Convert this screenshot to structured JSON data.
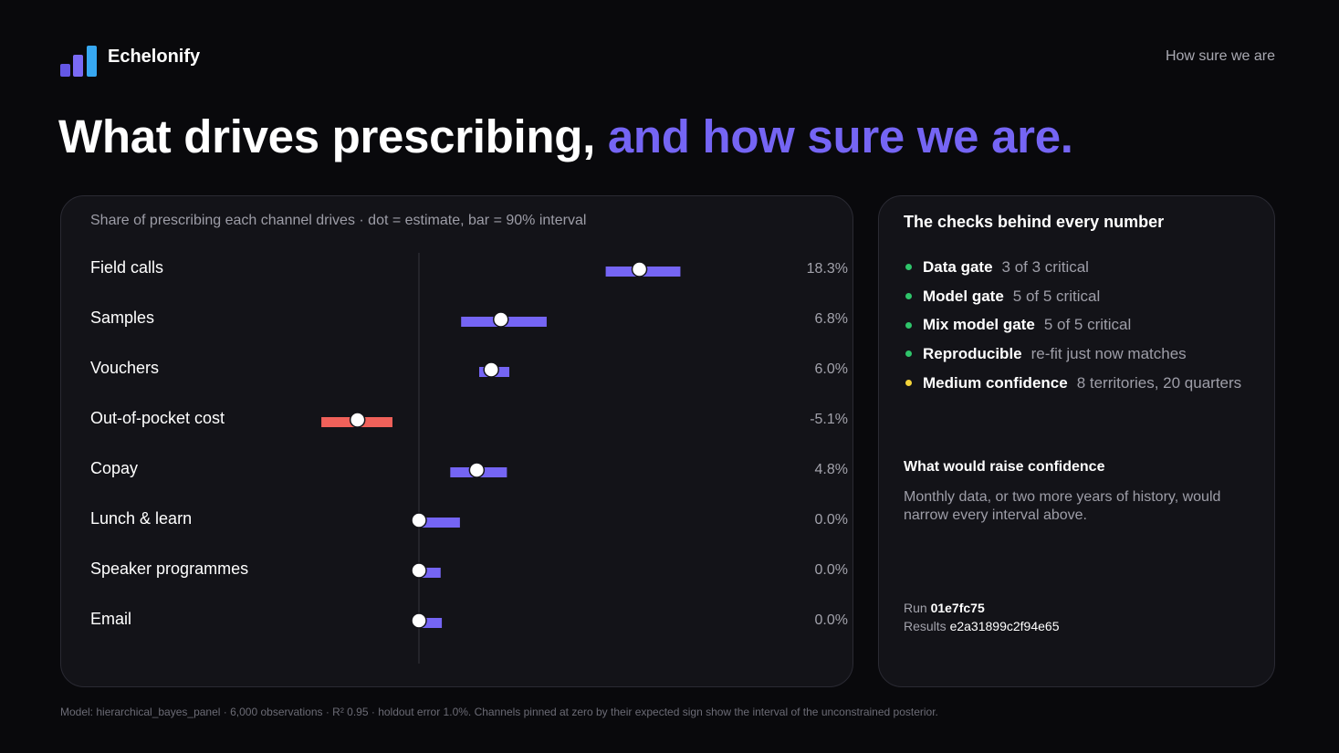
{
  "header": {
    "brand": "Echelonify",
    "nav_link": "How sure we are"
  },
  "headline": {
    "main": "What drives prescribing,",
    "accent": "and how sure we are."
  },
  "colors": {
    "accent": "#7565f4",
    "negative": "#f0615a",
    "good": "#2fc46a",
    "warning": "#f3d33a",
    "logo": [
      "#6457e6",
      "#7a6af5",
      "#37a8f2"
    ]
  },
  "chart_data": {
    "type": "interval-dot",
    "title": "Share of prescribing each channel drives · dot = estimate, bar = 90% interval",
    "x_zero_reference": 0,
    "xlim": [
      -8,
      22
    ],
    "unit": "%",
    "categories": [
      "Field calls",
      "Samples",
      "Vouchers",
      "Out-of-pocket cost",
      "Copay",
      "Lunch & learn",
      "Speaker programmes",
      "Email"
    ],
    "estimates": [
      18.3,
      6.8,
      6.0,
      -5.1,
      4.8,
      0.0,
      0.0,
      0.0
    ],
    "intervals": [
      [
        15.5,
        21.7
      ],
      [
        3.5,
        10.6
      ],
      [
        5.0,
        7.5
      ],
      [
        -8.1,
        -2.2
      ],
      [
        2.6,
        7.3
      ],
      [
        0.0,
        3.4
      ],
      [
        0.0,
        1.8
      ],
      [
        0.0,
        1.9
      ]
    ],
    "value_labels": [
      "18.3%",
      "6.8%",
      "6.0%",
      "-5.1%",
      "4.8%",
      "0.0%",
      "0.0%",
      "0.0%"
    ]
  },
  "checks": {
    "title": "The checks behind every number",
    "items": [
      {
        "name": "Data gate",
        "detail": "3 of 3 critical",
        "status": "good"
      },
      {
        "name": "Model gate",
        "detail": "5 of 5 critical",
        "status": "good"
      },
      {
        "name": "Mix model gate",
        "detail": "5 of 5 critical",
        "status": "good"
      },
      {
        "name": "Reproducible",
        "detail": "re-fit just now matches",
        "status": "good"
      },
      {
        "name": "Medium confidence",
        "detail": "8 territories, 20 quarters",
        "status": "warning"
      }
    ]
  },
  "raise": {
    "title": "What would raise confidence",
    "text": "Monthly data, or two more years of history, would narrow every interval above."
  },
  "meta": {
    "run_label": "Run",
    "run_value": "01e7fc75",
    "results_label": "Results",
    "results_value": "e2a31899c2f94e65"
  },
  "footnote": "Model: hierarchical_bayes_panel · 6,000 observations · R² 0.95 · holdout error 1.0%. Channels pinned at zero by their expected sign show the interval of the unconstrained posterior."
}
